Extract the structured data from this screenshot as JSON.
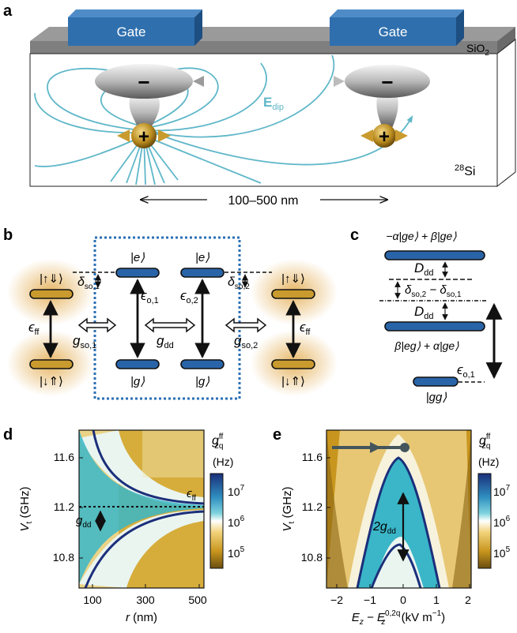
{
  "panel_a": {
    "letter": "a",
    "gate_left": "Gate",
    "gate_right": "Gate",
    "oxide_label": "SiO",
    "oxide_sub": "2",
    "substrate_sup": "28",
    "substrate_label": "Si",
    "field_label": "E",
    "field_sub": "dip",
    "distance_label": "100–500 nm",
    "minus": "−",
    "plus": "+"
  },
  "panel_b": {
    "letter": "b",
    "left_top_state": "|↑⇓⟩",
    "left_bottom_state": "|↓⇑⟩",
    "right_top_state": "|↑⇓⟩",
    "right_bottom_state": "|↓⇑⟩",
    "e1": "|e⟩",
    "e2": "|e⟩",
    "g1": "|g⟩",
    "g2": "|g⟩",
    "eps_ff_left": "ϵ",
    "eps_ff_right": "ϵ",
    "eps_ff_sub": "ff",
    "eps_o1": "ϵ",
    "eps_o1_sub": "o,1",
    "eps_o2": "ϵ",
    "eps_o2_sub": "o,2",
    "g_so1": "g",
    "g_so1_sub": "so,1",
    "g_so2": "g",
    "g_so2_sub": "so,2",
    "g_dd": "g",
    "g_dd_sub": "dd",
    "delta_so1": "δ",
    "delta_so1_sub": "so,1",
    "delta_so2": "δ",
    "delta_so2_sub": "so,2"
  },
  "panel_c": {
    "letter": "c",
    "top_state": "−α|ge⟩ + β|ge⟩",
    "mid_state": "β|eg⟩ + α|ge⟩",
    "bottom_state": "|gg⟩",
    "D_dd_1": "D",
    "D_dd_2": "D",
    "D_dd_sub": "dd",
    "delta_diff": "δ",
    "delta_diff_sub1": "so,2",
    "delta_diff_mid": " − δ",
    "delta_diff_sub2": "so,1",
    "eps_o1": "ϵ",
    "eps_o1_sub": "o,1"
  },
  "panel_d": {
    "letter": "d",
    "ylabel": "V",
    "ylabel_sub": "t",
    "ylabel_unit": " (GHz)",
    "xlabel": "r",
    "xlabel_unit": " (nm)",
    "yticks": [
      "11.6",
      "11.2",
      "10.8"
    ],
    "xticks": [
      "100",
      "300",
      "500"
    ],
    "eps_ff": "ϵ",
    "eps_ff_sub": "ff",
    "g_dd": "g",
    "g_dd_sub": "dd",
    "cbar_title": "g",
    "cbar_title_sup": "ff",
    "cbar_title_sub": "2q",
    "cbar_unit": "(Hz)",
    "cbar_ticks": [
      "10",
      "10",
      "10"
    ],
    "cbar_exps": [
      "7",
      "6",
      "5"
    ]
  },
  "panel_e": {
    "letter": "e",
    "ylabel": "V",
    "ylabel_sub": "t",
    "ylabel_unit": " (GHz)",
    "xlabel": "E",
    "xlabel_sub": "z",
    "xlabel_mid": " − E",
    "xlabel_sub2": "z",
    "xlabel_sup2": "0,2q",
    "xlabel_unit": " (kV m",
    "xlabel_unit_sup": "−1",
    "xlabel_close": ")",
    "yticks": [
      "11.6",
      "11.2",
      "10.8"
    ],
    "xticks": [
      "−2",
      "−1",
      "0",
      "1",
      "2"
    ],
    "two_g_dd": "2g",
    "two_g_dd_sub": "dd",
    "cbar_title": "g",
    "cbar_title_sup": "ff",
    "cbar_title_sub": "2q",
    "cbar_unit": "(Hz)",
    "cbar_ticks": [
      "10",
      "10",
      "10"
    ],
    "cbar_exps": [
      "7",
      "6",
      "5"
    ]
  },
  "colors": {
    "gate": "#2f6fae",
    "gate_side": "#1d4f82",
    "oxide": "#8a8a8a",
    "field": "#5fb7c9",
    "level_blue": "#2a64a8",
    "level_gold": "#c99a2e",
    "dotted_box": "#2a6fb5",
    "map_gold": "#c8961e",
    "map_cyan": "#3ab6c8",
    "map_navy": "#1b2f7a"
  }
}
